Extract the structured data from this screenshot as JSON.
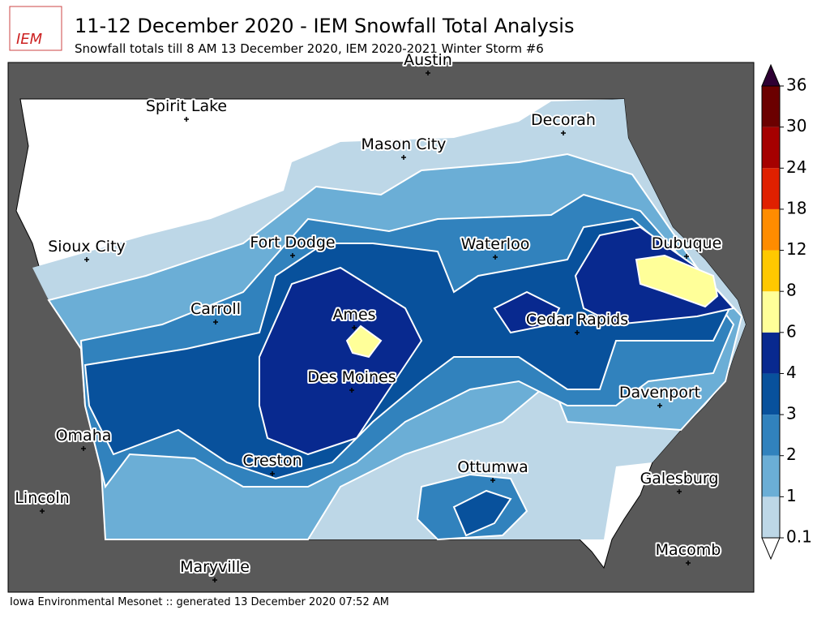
{
  "header": {
    "logo": "IEM",
    "title": "11-12 December 2020 - IEM Snowfall Total Analysis",
    "subtitle": "Snowfall totals till 8 AM 13 December 2020, IEM 2020-2021 Winter Storm #6"
  },
  "cities": [
    "Austin",
    "Spirit Lake",
    "Decorah",
    "Mason City",
    "Sioux City",
    "Fort Dodge",
    "Waterloo",
    "Dubuque",
    "Carroll",
    "Ames",
    "Cedar Rapids",
    "Des Moines",
    "Davenport",
    "Omaha",
    "Creston",
    "Ottumwa",
    "Galesburg",
    "Lincoln",
    "Macomb",
    "Maryville"
  ],
  "colorbar": {
    "ticks": [
      0.1,
      1,
      2,
      3,
      4,
      6,
      8,
      12,
      18,
      24,
      30,
      36
    ],
    "colors": [
      "#bdd7e7",
      "#6baed6",
      "#3182bd",
      "#08519c",
      "#08298f",
      "#ffff99",
      "#ffc800",
      "#ff8c00",
      "#e02000",
      "#a50000",
      "#6b0000"
    ],
    "under_color": "#ffffff",
    "over_color": "#2e0033"
  },
  "footer": "Iowa Environmental Mesonet :: generated 13 December 2020 07:52 AM"
}
